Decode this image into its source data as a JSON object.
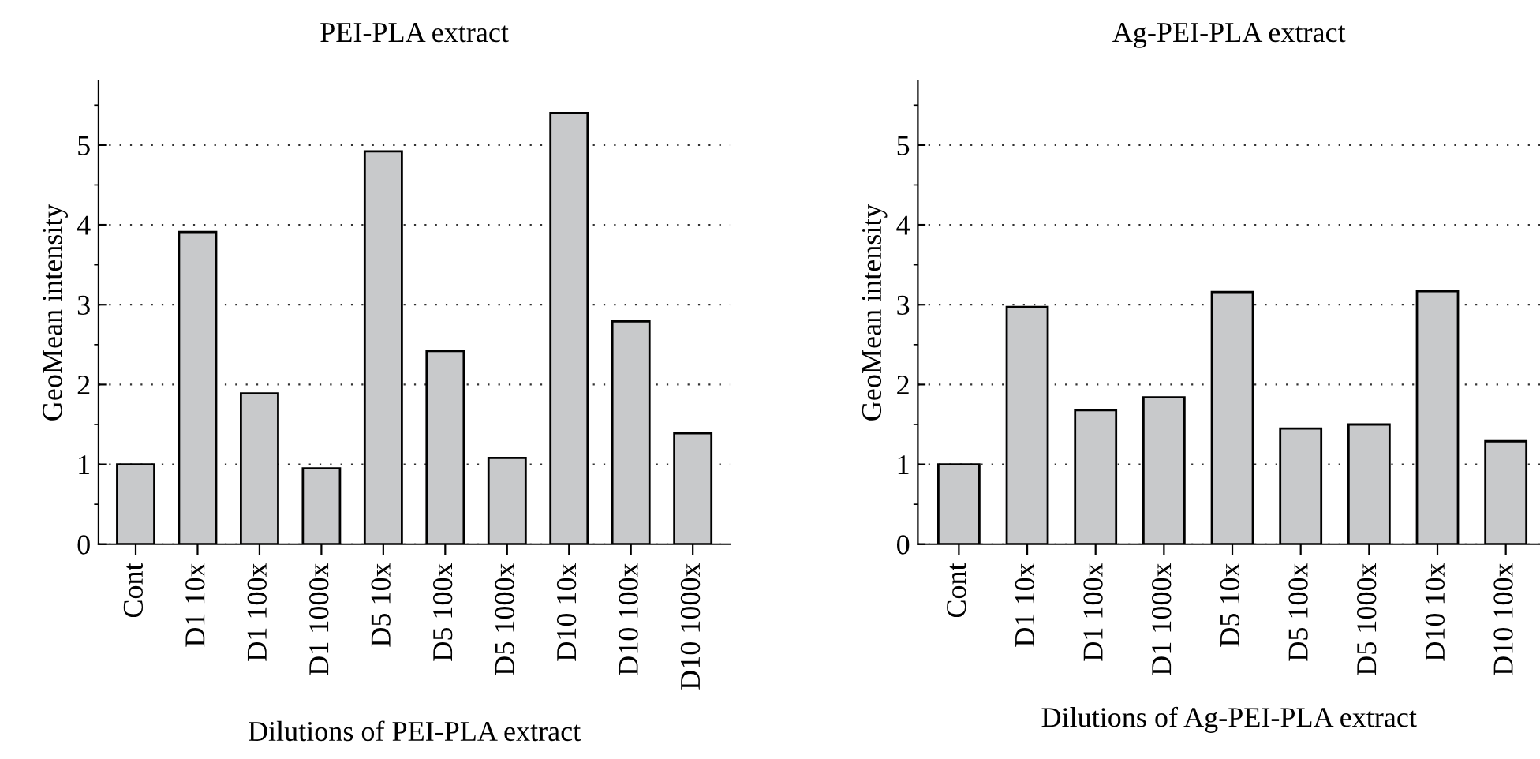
{
  "chart_data": [
    {
      "type": "bar",
      "title": "PEI-PLA extract",
      "xlabel": "Dilutions of PEI-PLA extract",
      "ylabel": "GeoMean intensity",
      "categories": [
        "Cont",
        "D1 10x",
        "D1 100x",
        "D1 1000x",
        "D5 10x",
        "D5 100x",
        "D5 1000x",
        "D10 10x",
        "D10 100x",
        "D10 1000x"
      ],
      "series": [
        {
          "color": "#c8c9cb",
          "values": [
            1.0,
            3.91,
            1.89,
            0.95,
            4.92,
            2.42,
            1.08,
            5.4,
            2.79,
            1.39
          ]
        }
      ],
      "ylim": [
        0,
        5.8
      ],
      "yticks": [
        0,
        1,
        2,
        3,
        4,
        5
      ],
      "grid": "y"
    },
    {
      "type": "bar",
      "title": "Ag-PEI-PLA extract",
      "xlabel": "Dilutions of Ag-PEI-PLA extract",
      "ylabel": "GeoMean intensity",
      "categories": [
        "Cont",
        "D1 10x",
        "D1 100x",
        "D1 1000x",
        "D5 10x",
        "D5 100x",
        "D5 1000x",
        "D10 10x",
        "D10 100x"
      ],
      "series": [
        {
          "color": "#c8c9cb",
          "values": [
            1.0,
            2.97,
            1.68,
            1.84,
            3.16,
            1.45,
            1.5,
            3.17,
            1.29
          ]
        }
      ],
      "ylim": [
        0,
        5.8
      ],
      "yticks": [
        0,
        1,
        2,
        3,
        4,
        5
      ],
      "grid": "y"
    }
  ]
}
